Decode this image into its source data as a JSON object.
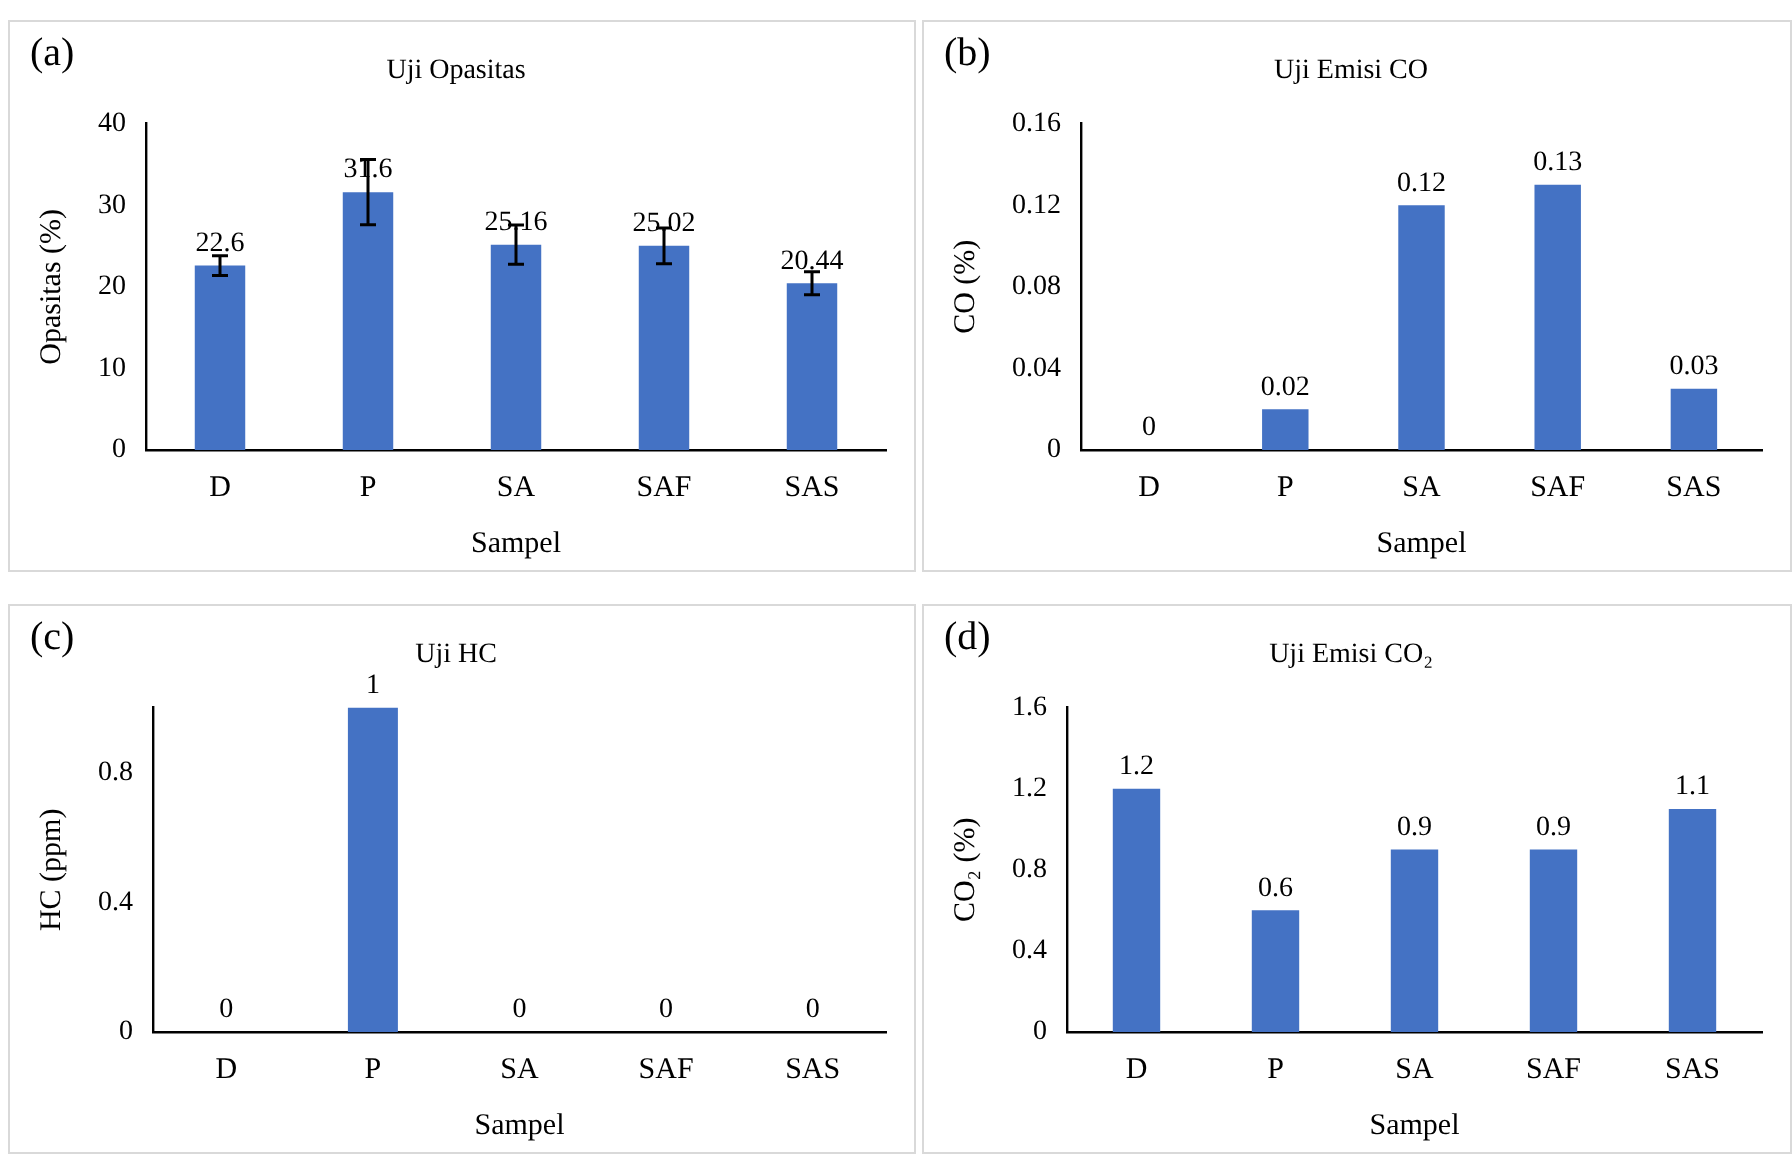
{
  "chart_data": [
    {
      "type": "bar",
      "title": "Uji Opasitas",
      "annotations": [
        "(a)"
      ],
      "xlabel": "Sampel",
      "ylabel": "Opasitas (%)",
      "categories": [
        "D",
        "P",
        "SA",
        "SAF",
        "SAS"
      ],
      "values": [
        22.6,
        31.6,
        25.16,
        25.02,
        20.44
      ],
      "errors": [
        1.2,
        4,
        2.4,
        2.2,
        1.4
      ],
      "color": "#4472c4",
      "ylim": [
        0,
        40
      ],
      "yticks": [
        0,
        10,
        20,
        30,
        40
      ],
      "data_labels": true
    },
    {
      "type": "bar",
      "title": "Uji Emisi CO",
      "annotations": [
        "(b)"
      ],
      "xlabel": "Sampel",
      "ylabel": "CO (%)",
      "categories": [
        "D",
        "P",
        "SA",
        "SAF",
        "SAS"
      ],
      "values": [
        0,
        0.02,
        0.12,
        0.13,
        0.03
      ],
      "color": "#4472c4",
      "ylim": [
        0,
        0.16
      ],
      "yticks": [
        0,
        0.04,
        0.08,
        0.12,
        0.16
      ],
      "data_labels": true
    },
    {
      "type": "bar",
      "title": "Uji HC",
      "annotations": [
        "(c)"
      ],
      "xlabel": "Sampel",
      "ylabel": "HC (ppm)",
      "categories": [
        "D",
        "P",
        "SA",
        "SAF",
        "SAS"
      ],
      "values": [
        0,
        1,
        0,
        0,
        0
      ],
      "color": "#4472c4",
      "ylim": [
        0,
        1
      ],
      "yticks": [
        0,
        0.4,
        0.8
      ],
      "data_labels": true
    },
    {
      "type": "bar",
      "title": "Uji Emisi CO₂",
      "annotations": [
        "(d)"
      ],
      "xlabel": "Sampel",
      "ylabel": "CO₂ (%)",
      "categories": [
        "D",
        "P",
        "SA",
        "SAF",
        "SAS"
      ],
      "values": [
        1.2,
        0.6,
        0.9,
        0.9,
        1.1
      ],
      "color": "#4472c4",
      "ylim": [
        0,
        1.6
      ],
      "yticks": [
        0,
        0.4,
        0.8,
        1.2,
        1.6
      ],
      "data_labels": true
    }
  ]
}
